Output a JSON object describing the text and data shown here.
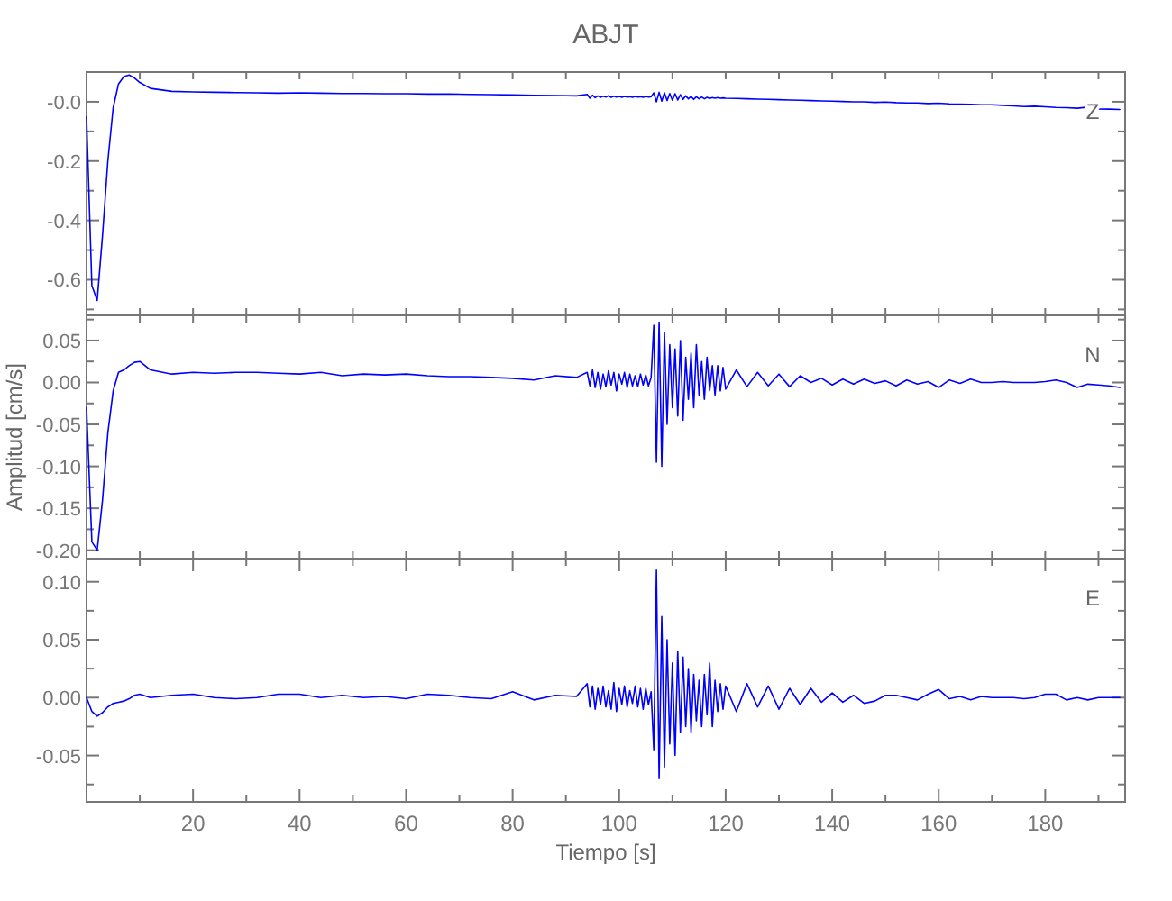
{
  "chart_data": [
    {
      "type": "line",
      "title": "ABJT",
      "annotations": [
        "Z"
      ],
      "color": "#0000ff",
      "tick_labels": "y",
      "xlim": [
        0,
        195
      ],
      "xticks": [
        {
          "value": 10,
          "label": null
        },
        {
          "value": 20,
          "label": null
        },
        {
          "value": 30,
          "label": null
        },
        {
          "value": 40,
          "label": null
        },
        {
          "value": 50,
          "label": null
        },
        {
          "value": 60,
          "label": null
        },
        {
          "value": 70,
          "label": null
        },
        {
          "value": 80,
          "label": null
        },
        {
          "value": 90,
          "label": null
        },
        {
          "value": 100,
          "label": null
        },
        {
          "value": 110,
          "label": null
        },
        {
          "value": 120,
          "label": null
        },
        {
          "value": 130,
          "label": null
        },
        {
          "value": 140,
          "label": null
        },
        {
          "value": 150,
          "label": null
        },
        {
          "value": 160,
          "label": null
        },
        {
          "value": 170,
          "label": null
        },
        {
          "value": 180,
          "label": null
        },
        {
          "value": 190,
          "label": null
        }
      ],
      "ylim": [
        -0.72,
        0.1
      ],
      "yticks": [
        {
          "value": 0,
          "label": "-0.0"
        },
        {
          "value": -0.1,
          "label": null
        },
        {
          "value": -0.2,
          "label": "-0.2"
        },
        {
          "value": -0.3,
          "label": null
        },
        {
          "value": -0.4,
          "label": "-0.4"
        },
        {
          "value": -0.5,
          "label": null
        },
        {
          "value": -0.6,
          "label": "-0.6"
        },
        {
          "value": -0.7,
          "label": null
        }
      ],
      "x": [
        0,
        1,
        2,
        3,
        4,
        5,
        6,
        7,
        8,
        9,
        10,
        12,
        16,
        20,
        24,
        28,
        32,
        36,
        40,
        44,
        48,
        52,
        56,
        60,
        64,
        68,
        72,
        76,
        80,
        84,
        88,
        92,
        94,
        94.5,
        95,
        95.5,
        96,
        96.5,
        97,
        97.5,
        98,
        98.5,
        99,
        99.5,
        100,
        100.5,
        101,
        101.5,
        102,
        102.5,
        103,
        103.5,
        104,
        104.5,
        105,
        105.5,
        106,
        106.5,
        107,
        107.5,
        108,
        108.5,
        109,
        109.5,
        110,
        110.5,
        111,
        111.5,
        112,
        112.5,
        113,
        113.5,
        114,
        114.5,
        115,
        115.5,
        116,
        116.5,
        117,
        117.5,
        118,
        118.5,
        119,
        119.5,
        120,
        122,
        124,
        126,
        128,
        130,
        132,
        134,
        136,
        138,
        140,
        142,
        144,
        146,
        148,
        150,
        152,
        154,
        156,
        158,
        160,
        162,
        164,
        166,
        168,
        170,
        172,
        174,
        176,
        178,
        180,
        182,
        184,
        186,
        188,
        190,
        192,
        194
      ],
      "values": [
        -0.05,
        -0.62,
        -0.67,
        -0.45,
        -0.2,
        -0.02,
        0.06,
        0.085,
        0.09,
        0.08,
        0.065,
        0.045,
        0.035,
        0.033,
        0.032,
        0.031,
        0.03,
        0.029,
        0.03,
        0.029,
        0.028,
        0.028,
        0.027,
        0.027,
        0.026,
        0.026,
        0.025,
        0.024,
        0.023,
        0.022,
        0.021,
        0.02,
        0.025,
        0.012,
        0.022,
        0.014,
        0.02,
        0.015,
        0.019,
        0.016,
        0.02,
        0.015,
        0.019,
        0.016,
        0.018,
        0.015,
        0.018,
        0.016,
        0.017,
        0.015,
        0.018,
        0.016,
        0.017,
        0.015,
        0.018,
        0.016,
        0.017,
        0.03,
        0.0,
        0.032,
        0.002,
        0.03,
        0.004,
        0.028,
        0.005,
        0.027,
        0.006,
        0.024,
        0.008,
        0.02,
        0.01,
        0.018,
        0.008,
        0.017,
        0.01,
        0.016,
        0.01,
        0.015,
        0.011,
        0.014,
        0.012,
        0.014,
        0.012,
        0.013,
        0.012,
        0.011,
        0.01,
        0.009,
        0.008,
        0.007,
        0.006,
        0.005,
        0.004,
        0.003,
        0.002,
        0.001,
        0.0,
        0.0,
        -0.002,
        -0.001,
        -0.003,
        -0.004,
        -0.004,
        -0.006,
        -0.005,
        -0.007,
        -0.008,
        -0.009,
        -0.01,
        -0.01,
        -0.012,
        -0.014,
        -0.016,
        -0.015,
        -0.017,
        -0.019,
        -0.02,
        -0.022,
        -0.018,
        -0.024,
        -0.025,
        -0.026
      ]
    },
    {
      "type": "line",
      "ylabel": "Amplitud [cm/s]",
      "annotations": [
        "N"
      ],
      "color": "#0000ff",
      "tick_labels": "y",
      "xlim": [
        0,
        195
      ],
      "xticks": [
        {
          "value": 10,
          "label": null
        },
        {
          "value": 20,
          "label": null
        },
        {
          "value": 30,
          "label": null
        },
        {
          "value": 40,
          "label": null
        },
        {
          "value": 50,
          "label": null
        },
        {
          "value": 60,
          "label": null
        },
        {
          "value": 70,
          "label": null
        },
        {
          "value": 80,
          "label": null
        },
        {
          "value": 90,
          "label": null
        },
        {
          "value": 100,
          "label": null
        },
        {
          "value": 110,
          "label": null
        },
        {
          "value": 120,
          "label": null
        },
        {
          "value": 130,
          "label": null
        },
        {
          "value": 140,
          "label": null
        },
        {
          "value": 150,
          "label": null
        },
        {
          "value": 160,
          "label": null
        },
        {
          "value": 170,
          "label": null
        },
        {
          "value": 180,
          "label": null
        },
        {
          "value": 190,
          "label": null
        }
      ],
      "ylim": [
        -0.21,
        0.08
      ],
      "yticks": [
        {
          "value": 0.075,
          "label": null
        },
        {
          "value": 0.05,
          "label": "0.05"
        },
        {
          "value": 0.025,
          "label": null
        },
        {
          "value": 0,
          "label": "0.00"
        },
        {
          "value": -0.025,
          "label": null
        },
        {
          "value": -0.05,
          "label": "-0.05"
        },
        {
          "value": -0.075,
          "label": null
        },
        {
          "value": -0.1,
          "label": "-0.10"
        },
        {
          "value": -0.125,
          "label": null
        },
        {
          "value": -0.15,
          "label": "-0.15"
        },
        {
          "value": -0.175,
          "label": null
        },
        {
          "value": -0.2,
          "label": "-0.20"
        }
      ],
      "x": [
        0,
        1,
        2,
        3,
        4,
        5,
        6,
        7,
        8,
        9,
        10,
        12,
        16,
        20,
        24,
        28,
        32,
        36,
        40,
        44,
        48,
        52,
        56,
        60,
        64,
        68,
        72,
        76,
        80,
        84,
        88,
        92,
        94,
        94.5,
        95,
        95.5,
        96,
        96.5,
        97,
        97.5,
        98,
        98.5,
        99,
        99.5,
        100,
        100.5,
        101,
        101.5,
        102,
        102.5,
        103,
        103.5,
        104,
        104.5,
        105,
        105.5,
        106,
        106.5,
        107,
        107.5,
        108,
        108.5,
        109,
        109.5,
        110,
        110.5,
        111,
        111.5,
        112,
        112.5,
        113,
        113.5,
        114,
        114.5,
        115,
        115.5,
        116,
        116.5,
        117,
        117.5,
        118,
        118.5,
        119,
        119.5,
        120,
        122,
        124,
        126,
        128,
        130,
        132,
        134,
        136,
        138,
        140,
        142,
        144,
        146,
        148,
        150,
        152,
        154,
        156,
        158,
        160,
        162,
        164,
        166,
        168,
        170,
        172,
        174,
        176,
        178,
        180,
        182,
        184,
        186,
        188,
        190,
        192,
        194
      ],
      "values": [
        -0.03,
        -0.19,
        -0.2,
        -0.14,
        -0.06,
        -0.01,
        0.012,
        0.015,
        0.02,
        0.024,
        0.025,
        0.015,
        0.01,
        0.012,
        0.011,
        0.012,
        0.012,
        0.011,
        0.01,
        0.012,
        0.008,
        0.01,
        0.009,
        0.01,
        0.008,
        0.007,
        0.007,
        0.006,
        0.005,
        0.003,
        0.008,
        0.006,
        0.012,
        -0.004,
        0.015,
        -0.006,
        0.012,
        -0.008,
        0.01,
        -0.005,
        0.014,
        -0.003,
        0.012,
        -0.01,
        0.01,
        -0.002,
        0.012,
        -0.006,
        0.01,
        -0.004,
        0.008,
        -0.005,
        0.01,
        -0.003,
        0.009,
        -0.004,
        0.006,
        0.068,
        -0.095,
        0.072,
        -0.1,
        0.06,
        -0.05,
        0.045,
        -0.03,
        0.04,
        -0.04,
        0.05,
        -0.045,
        0.03,
        -0.02,
        0.035,
        -0.03,
        0.045,
        -0.015,
        0.025,
        -0.02,
        0.03,
        -0.01,
        0.02,
        -0.015,
        0.02,
        -0.01,
        0.018,
        -0.008,
        0.015,
        -0.005,
        0.012,
        -0.004,
        0.01,
        -0.005,
        0.008,
        0.0,
        0.005,
        -0.003,
        0.004,
        -0.002,
        0.004,
        -0.001,
        0.002,
        -0.004,
        0.003,
        -0.002,
        0.001,
        -0.006,
        0.003,
        -0.001,
        0.004,
        0.0,
        0.0,
        0.001,
        0.0,
        0.0,
        0.0,
        0.001,
        0.003,
        0.0,
        -0.006,
        -0.002,
        -0.003,
        -0.004,
        -0.006
      ]
    },
    {
      "type": "line",
      "xlabel": "Tiempo [s]",
      "annotations": [
        "E"
      ],
      "color": "#0000ff",
      "xlim": [
        0,
        195
      ],
      "xticks": [
        {
          "value": 10,
          "label": null
        },
        20,
        {
          "value": 30,
          "label": null
        },
        40,
        {
          "value": 50,
          "label": null
        },
        60,
        {
          "value": 70,
          "label": null
        },
        80,
        {
          "value": 90,
          "label": null
        },
        100,
        {
          "value": 110,
          "label": null
        },
        120,
        {
          "value": 130,
          "label": null
        },
        140,
        {
          "value": 150,
          "label": null
        },
        160,
        {
          "value": 170,
          "label": null
        },
        180,
        {
          "value": 190,
          "label": null
        }
      ],
      "ylim": [
        -0.09,
        0.12
      ],
      "yticks": [
        {
          "value": 0.1,
          "label": "0.10"
        },
        {
          "value": 0.075,
          "label": null
        },
        {
          "value": 0.05,
          "label": "0.05"
        },
        {
          "value": 0.025,
          "label": null
        },
        {
          "value": 0,
          "label": "0.00"
        },
        {
          "value": -0.025,
          "label": null
        },
        {
          "value": -0.05,
          "label": "-0.05"
        },
        {
          "value": -0.075,
          "label": null
        }
      ],
      "x": [
        0,
        1,
        2,
        3,
        4,
        5,
        6,
        7,
        8,
        9,
        10,
        12,
        16,
        20,
        24,
        28,
        32,
        36,
        40,
        44,
        48,
        52,
        56,
        60,
        64,
        68,
        72,
        76,
        80,
        84,
        88,
        92,
        94,
        94.5,
        95,
        95.5,
        96,
        96.5,
        97,
        97.5,
        98,
        98.5,
        99,
        99.5,
        100,
        100.5,
        101,
        101.5,
        102,
        102.5,
        103,
        103.5,
        104,
        104.5,
        105,
        105.5,
        106,
        106.5,
        107,
        107.5,
        108,
        108.5,
        109,
        109.5,
        110,
        110.5,
        111,
        111.5,
        112,
        112.5,
        113,
        113.5,
        114,
        114.5,
        115,
        115.5,
        116,
        116.5,
        117,
        117.5,
        118,
        118.5,
        119,
        119.5,
        120,
        122,
        124,
        126,
        128,
        130,
        132,
        134,
        136,
        138,
        140,
        142,
        144,
        146,
        148,
        150,
        152,
        154,
        156,
        158,
        160,
        162,
        164,
        166,
        168,
        170,
        172,
        174,
        176,
        178,
        180,
        182,
        184,
        186,
        188,
        190,
        192,
        194
      ],
      "values": [
        0.0,
        -0.012,
        -0.016,
        -0.013,
        -0.008,
        -0.005,
        -0.004,
        -0.003,
        -0.001,
        0.002,
        0.003,
        0.0,
        0.002,
        0.003,
        0.0,
        -0.001,
        0.0,
        0.003,
        0.003,
        0.0,
        0.002,
        0.0,
        0.001,
        -0.001,
        0.003,
        0.002,
        0.0,
        -0.001,
        0.005,
        -0.002,
        0.002,
        0.001,
        0.012,
        -0.008,
        0.01,
        -0.01,
        0.008,
        -0.006,
        0.01,
        -0.008,
        0.006,
        -0.01,
        0.013,
        -0.012,
        0.008,
        -0.006,
        0.01,
        -0.008,
        0.006,
        -0.005,
        0.01,
        -0.008,
        0.008,
        -0.01,
        0.008,
        -0.006,
        0.005,
        -0.045,
        0.11,
        -0.07,
        0.07,
        -0.06,
        0.05,
        -0.04,
        0.03,
        -0.05,
        0.04,
        -0.03,
        0.035,
        -0.025,
        0.025,
        -0.03,
        0.02,
        -0.02,
        0.015,
        -0.025,
        0.02,
        -0.015,
        0.03,
        -0.025,
        0.015,
        -0.012,
        0.012,
        -0.01,
        0.01,
        -0.012,
        0.012,
        -0.008,
        0.01,
        -0.01,
        0.008,
        -0.006,
        0.008,
        -0.004,
        0.004,
        -0.004,
        0.002,
        -0.005,
        -0.003,
        0.002,
        0.002,
        0.0,
        -0.002,
        0.003,
        0.007,
        -0.001,
        0.001,
        -0.002,
        0.001,
        0.0,
        0.0,
        0.0,
        -0.001,
        0.0,
        0.003,
        0.003,
        -0.002,
        0.0,
        -0.002,
        0.0,
        0.0,
        0.0
      ]
    }
  ]
}
